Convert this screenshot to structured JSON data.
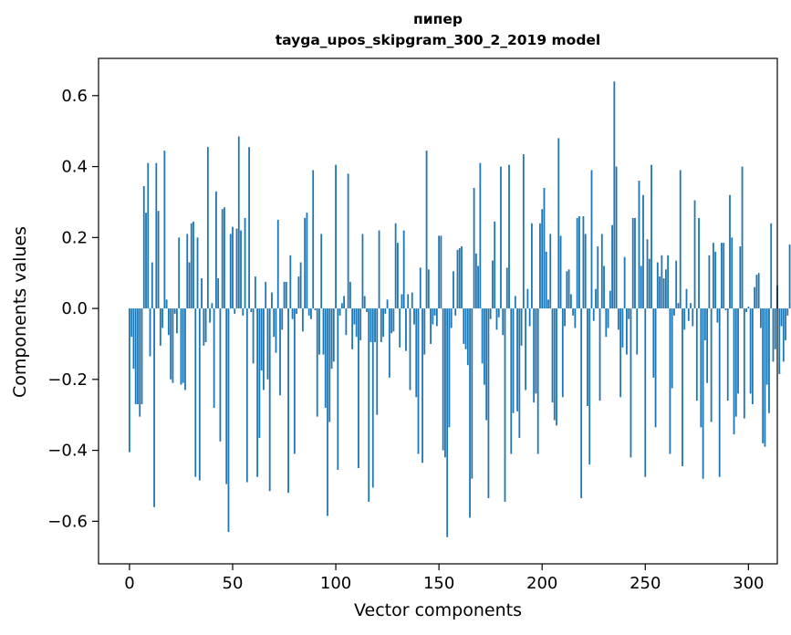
{
  "chart_data": {
    "type": "bar",
    "title_line1": "пипер",
    "title_line2": "tayga_upos_skipgram_300_2_2019 model",
    "xlabel": "Vector components",
    "ylabel": "Components values",
    "xlim": [
      -15,
      314
    ],
    "ylim": [
      -0.72,
      0.705
    ],
    "xticks": [
      0,
      50,
      100,
      150,
      200,
      250,
      300
    ],
    "xtick_labels": [
      "0",
      "50",
      "100",
      "150",
      "200",
      "250",
      "300"
    ],
    "yticks": [
      -0.6,
      -0.4,
      -0.2,
      0.0,
      0.2,
      0.4,
      0.6
    ],
    "ytick_labels": [
      "−0.6",
      "−0.4",
      "−0.2",
      "0.0",
      "0.2",
      "0.4",
      "0.6"
    ],
    "bar_color": "#1f77b4",
    "values": [
      -0.405,
      -0.08,
      -0.17,
      -0.27,
      -0.27,
      -0.305,
      -0.27,
      0.345,
      0.27,
      0.41,
      -0.135,
      0.13,
      -0.56,
      0.41,
      0.275,
      -0.105,
      -0.055,
      0.445,
      0.025,
      -0.075,
      -0.2,
      -0.21,
      -0.015,
      -0.07,
      0.2,
      -0.215,
      -0.21,
      -0.23,
      0.21,
      0.13,
      0.24,
      0.245,
      -0.475,
      0.2,
      -0.485,
      0.085,
      -0.105,
      -0.095,
      0.455,
      -0.04,
      0.015,
      -0.28,
      0.33,
      0.085,
      -0.375,
      0.28,
      0.285,
      -0.495,
      -0.63,
      0.21,
      0.23,
      -0.015,
      0.225,
      0.485,
      0.22,
      -0.02,
      0.255,
      -0.49,
      0.455,
      -0.01,
      -0.155,
      0.09,
      -0.475,
      -0.365,
      -0.175,
      -0.23,
      0.075,
      -0.2,
      -0.515,
      0.045,
      -0.08,
      -0.125,
      0.25,
      -0.245,
      -0.06,
      0.075,
      0.075,
      -0.52,
      0.15,
      -0.03,
      -0.41,
      -0.015,
      0.09,
      0.13,
      -0.065,
      0.255,
      0.27,
      -0.02,
      -0.03,
      0.39,
      -0.005,
      -0.305,
      -0.13,
      0.21,
      -0.13,
      -0.28,
      -0.585,
      -0.32,
      -0.17,
      -0.15,
      0.405,
      -0.455,
      -0.02,
      0.015,
      0.035,
      -0.075,
      0.38,
      0.075,
      -0.115,
      -0.045,
      -0.08,
      -0.45,
      -0.09,
      0.21,
      0.035,
      -0.01,
      -0.545,
      -0.095,
      -0.505,
      -0.095,
      -0.3,
      0.22,
      -0.095,
      -0.08,
      -0.015,
      0.025,
      -0.195,
      -0.07,
      -0.065,
      0.24,
      0.185,
      -0.11,
      0.04,
      0.22,
      -0.12,
      0.04,
      -0.23,
      0.045,
      -0.045,
      -0.25,
      -0.41,
      0.115,
      -0.435,
      -0.13,
      0.445,
      0.11,
      -0.1,
      -0.045,
      -0.02,
      -0.05,
      0.205,
      0.205,
      -0.4,
      -0.42,
      -0.645,
      -0.335,
      -0.055,
      0.105,
      -0.02,
      0.165,
      0.17,
      0.175,
      -0.1,
      -0.115,
      -0.16,
      -0.59,
      -0.48,
      0.34,
      0.155,
      0.12,
      0.41,
      -0.155,
      -0.215,
      -0.315,
      -0.535,
      -0.03,
      0.135,
      0.245,
      -0.06,
      -0.025,
      0.4,
      -0.075,
      -0.545,
      0.115,
      0.405,
      -0.41,
      -0.295,
      0.035,
      -0.29,
      -0.365,
      -0.105,
      0.435,
      -0.23,
      0.055,
      -0.05,
      0.24,
      -0.265,
      -0.24,
      -0.41,
      0.24,
      0.28,
      0.34,
      0.16,
      0.025,
      0.21,
      -0.265,
      -0.315,
      -0.33,
      0.48,
      0.205,
      -0.25,
      -0.05,
      0.105,
      0.11,
      0.04,
      -0.02,
      -0.055,
      0.255,
      0.26,
      -0.535,
      0.26,
      0.21,
      -0.275,
      -0.44,
      0.39,
      -0.035,
      0.055,
      0.175,
      -0.26,
      0.21,
      0.12,
      -0.08,
      -0.055,
      0.05,
      0.235,
      0.64,
      0.4,
      -0.06,
      -0.25,
      -0.11,
      0.145,
      -0.13,
      -0.03,
      -0.42,
      0.255,
      0.255,
      -0.13,
      0.36,
      0.12,
      0.32,
      -0.475,
      0.195,
      0.14,
      0.405,
      -0.195,
      -0.335,
      0.13,
      0.09,
      0.15,
      0.085,
      0.11,
      0.15,
      -0.41,
      -0.225,
      -0.02,
      0.135,
      0.015,
      0.39,
      -0.445,
      -0.06,
      0.055,
      -0.035,
      0.015,
      -0.05,
      0.305,
      -0.26,
      0.255,
      -0.335,
      -0.48,
      -0.09,
      -0.21,
      0.15,
      -0.32,
      0.185,
      0.16,
      -0.04,
      -0.475,
      0.185,
      0.185,
      -0.005,
      -0.26,
      0.32,
      0.2,
      -0.355,
      -0.305,
      -0.24,
      0.175,
      0.4,
      -0.31,
      -0.01,
      0.005,
      -0.24,
      -0.27,
      0.06,
      0.095,
      0.1,
      -0.055,
      -0.38,
      -0.39,
      -0.215,
      -0.295,
      0.24,
      -0.15,
      -0.115,
      0.065,
      -0.185,
      -0.05,
      -0.15,
      -0.09,
      -0.02,
      0.18,
      0.015
    ]
  }
}
